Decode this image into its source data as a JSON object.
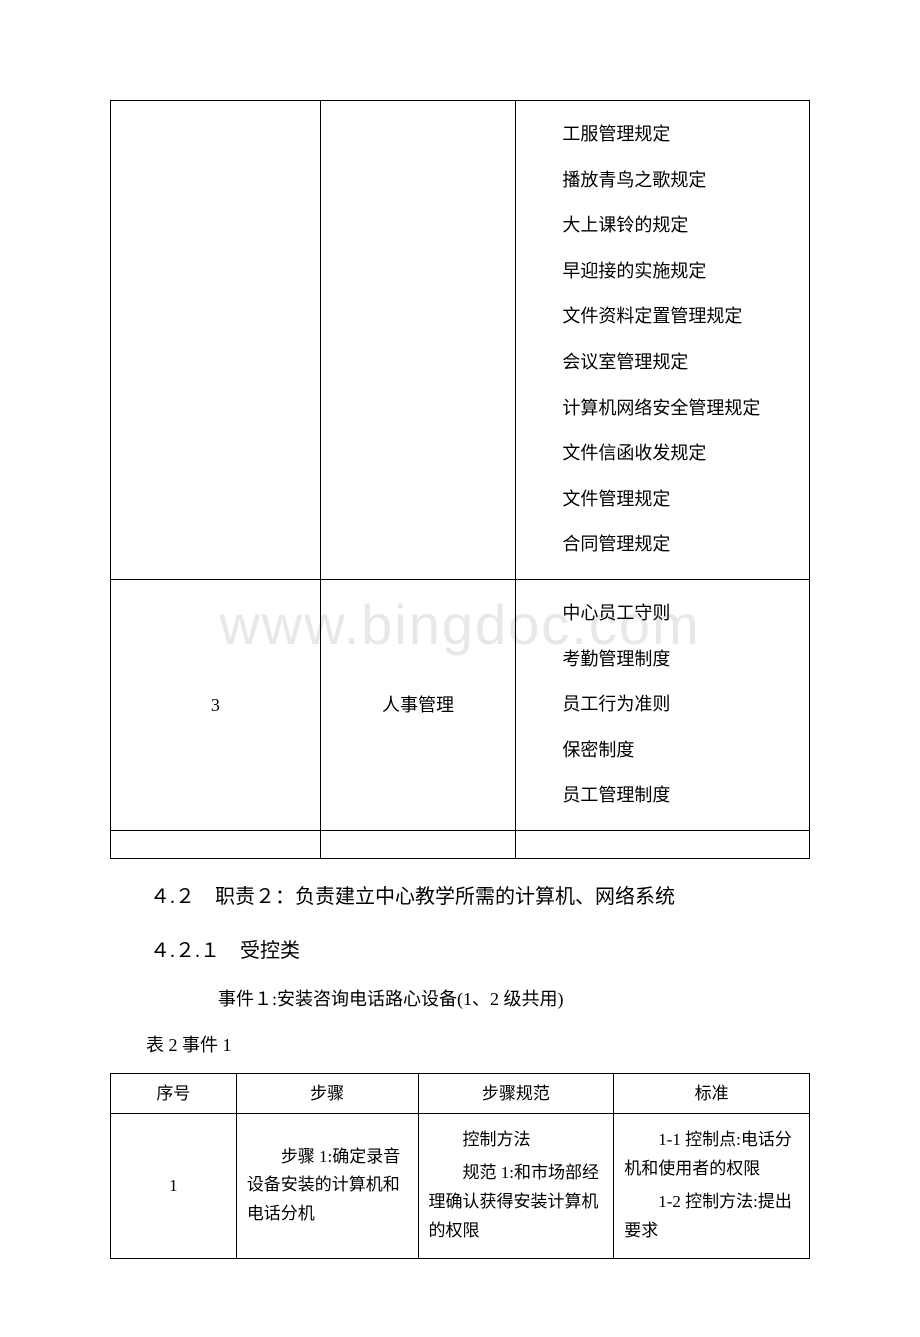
{
  "table1": {
    "rows": [
      {
        "num": "",
        "category": "",
        "items": [
          "工服管理规定",
          "播放青鸟之歌规定",
          "大上课铃的规定",
          "早迎接的实施规定",
          "文件资料定置管理规定",
          "会议室管理规定",
          "计算机网络安全管理规定",
          "文件信函收发规定",
          "文件管理规定",
          "合同管理规定"
        ]
      },
      {
        "num": "3",
        "category": "人事管理",
        "items": [
          "中心员工守则",
          "考勤管理制度",
          "员工行为准则",
          "保密制度",
          "员工管理制度"
        ]
      }
    ]
  },
  "section_4_2": "４.２　职责２：负责建立中心教学所需的计算机、网络系统",
  "section_4_2_1": "４.２.１　受控类",
  "event1": "事件１:安装咨询电话路心设备(1、2 级共用)",
  "table2_caption": "表 2 事件 1",
  "table2": {
    "headers": [
      "序号",
      "步骤",
      "步骤规范",
      "标准"
    ],
    "rows": [
      {
        "num": "1",
        "step": "步骤 1:确定录音设备安装的计算机和电话分机",
        "norm_lines": [
          "控制方法",
          "规范 1:和市场部经理确认获得安装计算机的权限"
        ],
        "standard_lines": [
          "1-1 控制点:电话分机和使用者的权限",
          "1-2 控制方法:提出要求"
        ]
      }
    ]
  },
  "watermark": "www.bingdoc.com",
  "colors": {
    "text": "#000000",
    "border": "#000000",
    "background": "#ffffff",
    "watermark": "#e8e8e8"
  }
}
